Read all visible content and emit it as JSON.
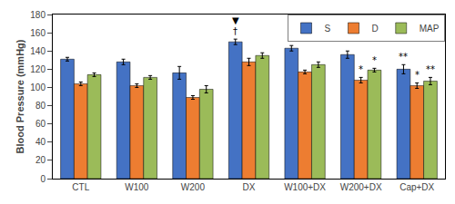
{
  "chart_data": {
    "type": "bar",
    "categories": [
      "CTL",
      "W100",
      "W200",
      "DX",
      "W100+DX",
      "W200+DX",
      "Cap+DX"
    ],
    "series": [
      {
        "name": "S",
        "color": "#4472C4",
        "values": [
          131,
          128,
          116,
          150,
          143,
          136,
          120
        ],
        "errors": [
          2,
          3,
          7,
          3,
          3,
          4,
          5
        ]
      },
      {
        "name": "D",
        "color": "#ED7D31",
        "values": [
          104,
          102,
          89,
          128,
          117,
          108,
          102
        ],
        "errors": [
          2,
          2,
          2,
          4,
          2,
          3,
          3
        ]
      },
      {
        "name": "MAP",
        "color": "#9BBB59",
        "values": [
          114,
          111,
          98,
          135,
          125,
          119,
          107
        ],
        "errors": [
          2,
          2,
          4,
          3,
          3,
          2,
          4
        ]
      }
    ],
    "ylabel": "Blood Pressure (mmHg)",
    "ylim": [
      0,
      180
    ],
    "yticks": [
      0,
      20,
      40,
      60,
      80,
      100,
      120,
      140,
      160,
      180
    ],
    "grid": false,
    "legend": "upper right",
    "annotations": [
      {
        "text": "†",
        "category": "DX",
        "series": "S"
      },
      {
        "text": "▼",
        "category": "DX",
        "series": "S"
      },
      {
        "text": "*",
        "category": "W200+DX",
        "series": "D"
      },
      {
        "text": "*",
        "category": "W200+DX",
        "series": "MAP"
      },
      {
        "text": "**",
        "category": "Cap+DX",
        "series": "S"
      },
      {
        "text": "*",
        "category": "Cap+DX",
        "series": "D"
      },
      {
        "text": "**",
        "category": "Cap+DX",
        "series": "MAP"
      }
    ]
  }
}
